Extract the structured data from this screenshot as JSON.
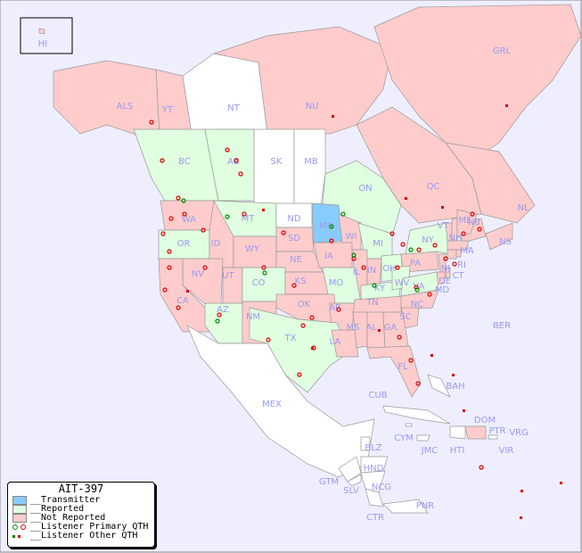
{
  "map": {
    "background": "#eeeeff",
    "colors": {
      "transmitter": "#88ccff",
      "reported": "#e0ffe0",
      "not_reported": "#ffcccc",
      "none": "#ffffff",
      "primary_dot": "#dd0000",
      "reported_dot": "#008800"
    },
    "regions": [
      {
        "label": "HI",
        "status": "not_reported"
      },
      {
        "label": "ALS",
        "status": "not_reported"
      },
      {
        "label": "YT",
        "status": "not_reported"
      },
      {
        "label": "NT",
        "status": "none"
      },
      {
        "label": "NU",
        "status": "not_reported"
      },
      {
        "label": "GRL",
        "status": "not_reported"
      },
      {
        "label": "BC",
        "status": "reported"
      },
      {
        "label": "AB",
        "status": "reported"
      },
      {
        "label": "SK",
        "status": "none"
      },
      {
        "label": "MB",
        "status": "none"
      },
      {
        "label": "ON",
        "status": "reported"
      },
      {
        "label": "QC",
        "status": "not_reported"
      },
      {
        "label": "NL",
        "status": "not_reported"
      },
      {
        "label": "NB",
        "status": "not_reported"
      },
      {
        "label": "NS",
        "status": "not_reported"
      },
      {
        "label": "WA",
        "status": "not_reported"
      },
      {
        "label": "OR",
        "status": "reported"
      },
      {
        "label": "ID",
        "status": "not_reported"
      },
      {
        "label": "MT",
        "status": "reported"
      },
      {
        "label": "ND",
        "status": "none"
      },
      {
        "label": "MN",
        "status": "transmitter"
      },
      {
        "label": "WI",
        "status": "not_reported"
      },
      {
        "label": "MI",
        "status": "reported"
      },
      {
        "label": "SD",
        "status": "not_reported"
      },
      {
        "label": "WY",
        "status": "not_reported"
      },
      {
        "label": "NE",
        "status": "not_reported"
      },
      {
        "label": "IA",
        "status": "not_reported"
      },
      {
        "label": "IL",
        "status": "not_reported"
      },
      {
        "label": "IN",
        "status": "not_reported"
      },
      {
        "label": "OH",
        "status": "reported"
      },
      {
        "label": "PA",
        "status": "not_reported"
      },
      {
        "label": "NY",
        "status": "reported"
      },
      {
        "label": "VT",
        "status": "not_reported"
      },
      {
        "label": "NH",
        "status": "not_reported"
      },
      {
        "label": "ME",
        "status": "not_reported"
      },
      {
        "label": "MA",
        "status": "not_reported"
      },
      {
        "label": "CT",
        "status": "not_reported"
      },
      {
        "label": "RI",
        "status": "not_reported"
      },
      {
        "label": "NJ",
        "status": "not_reported"
      },
      {
        "label": "DE",
        "status": "not_reported"
      },
      {
        "label": "MD",
        "status": "not_reported"
      },
      {
        "label": "NV",
        "status": "not_reported"
      },
      {
        "label": "UT",
        "status": "not_reported"
      },
      {
        "label": "CO",
        "status": "reported"
      },
      {
        "label": "KS",
        "status": "not_reported"
      },
      {
        "label": "MO",
        "status": "reported"
      },
      {
        "label": "KY",
        "status": "reported"
      },
      {
        "label": "WV",
        "status": "reported"
      },
      {
        "label": "VA",
        "status": "reported"
      },
      {
        "label": "CA",
        "status": "not_reported"
      },
      {
        "label": "AZ",
        "status": "reported"
      },
      {
        "label": "NM",
        "status": "not_reported"
      },
      {
        "label": "OK",
        "status": "not_reported"
      },
      {
        "label": "AR",
        "status": "not_reported"
      },
      {
        "label": "TN",
        "status": "not_reported"
      },
      {
        "label": "NC",
        "status": "not_reported"
      },
      {
        "label": "SC",
        "status": "not_reported"
      },
      {
        "label": "TX",
        "status": "reported"
      },
      {
        "label": "LA",
        "status": "not_reported"
      },
      {
        "label": "MS",
        "status": "not_reported"
      },
      {
        "label": "AL",
        "status": "not_reported"
      },
      {
        "label": "GA",
        "status": "not_reported"
      },
      {
        "label": "FL",
        "status": "not_reported"
      },
      {
        "label": "MEX",
        "status": "none"
      },
      {
        "label": "BER",
        "status": "none"
      },
      {
        "label": "BAH",
        "status": "none"
      },
      {
        "label": "CUB",
        "status": "none"
      },
      {
        "label": "DOM",
        "status": "not_reported"
      },
      {
        "label": "PTR",
        "status": "none"
      },
      {
        "label": "VRG",
        "status": "none"
      },
      {
        "label": "VIR",
        "status": "none"
      },
      {
        "label": "HTI",
        "status": "none"
      },
      {
        "label": "JMC",
        "status": "none"
      },
      {
        "label": "CYM",
        "status": "none"
      },
      {
        "label": "BLZ",
        "status": "none"
      },
      {
        "label": "HND",
        "status": "none"
      },
      {
        "label": "GTM",
        "status": "none"
      },
      {
        "label": "SLV",
        "status": "none"
      },
      {
        "label": "NCG",
        "status": "none"
      },
      {
        "label": "CTR",
        "status": "none"
      },
      {
        "label": "PNR",
        "status": "none"
      }
    ]
  },
  "legend": {
    "title": "AIT-397",
    "items": [
      {
        "label": "__Transmitter",
        "color": "#88ccff"
      },
      {
        "label": "__Reported",
        "color": "#e0ffe0"
      },
      {
        "label": "__Not Reported",
        "color": "#ffcccc"
      },
      {
        "label": "__Listener Primary QTH"
      },
      {
        "label": "__Listener Other QTH"
      }
    ]
  }
}
